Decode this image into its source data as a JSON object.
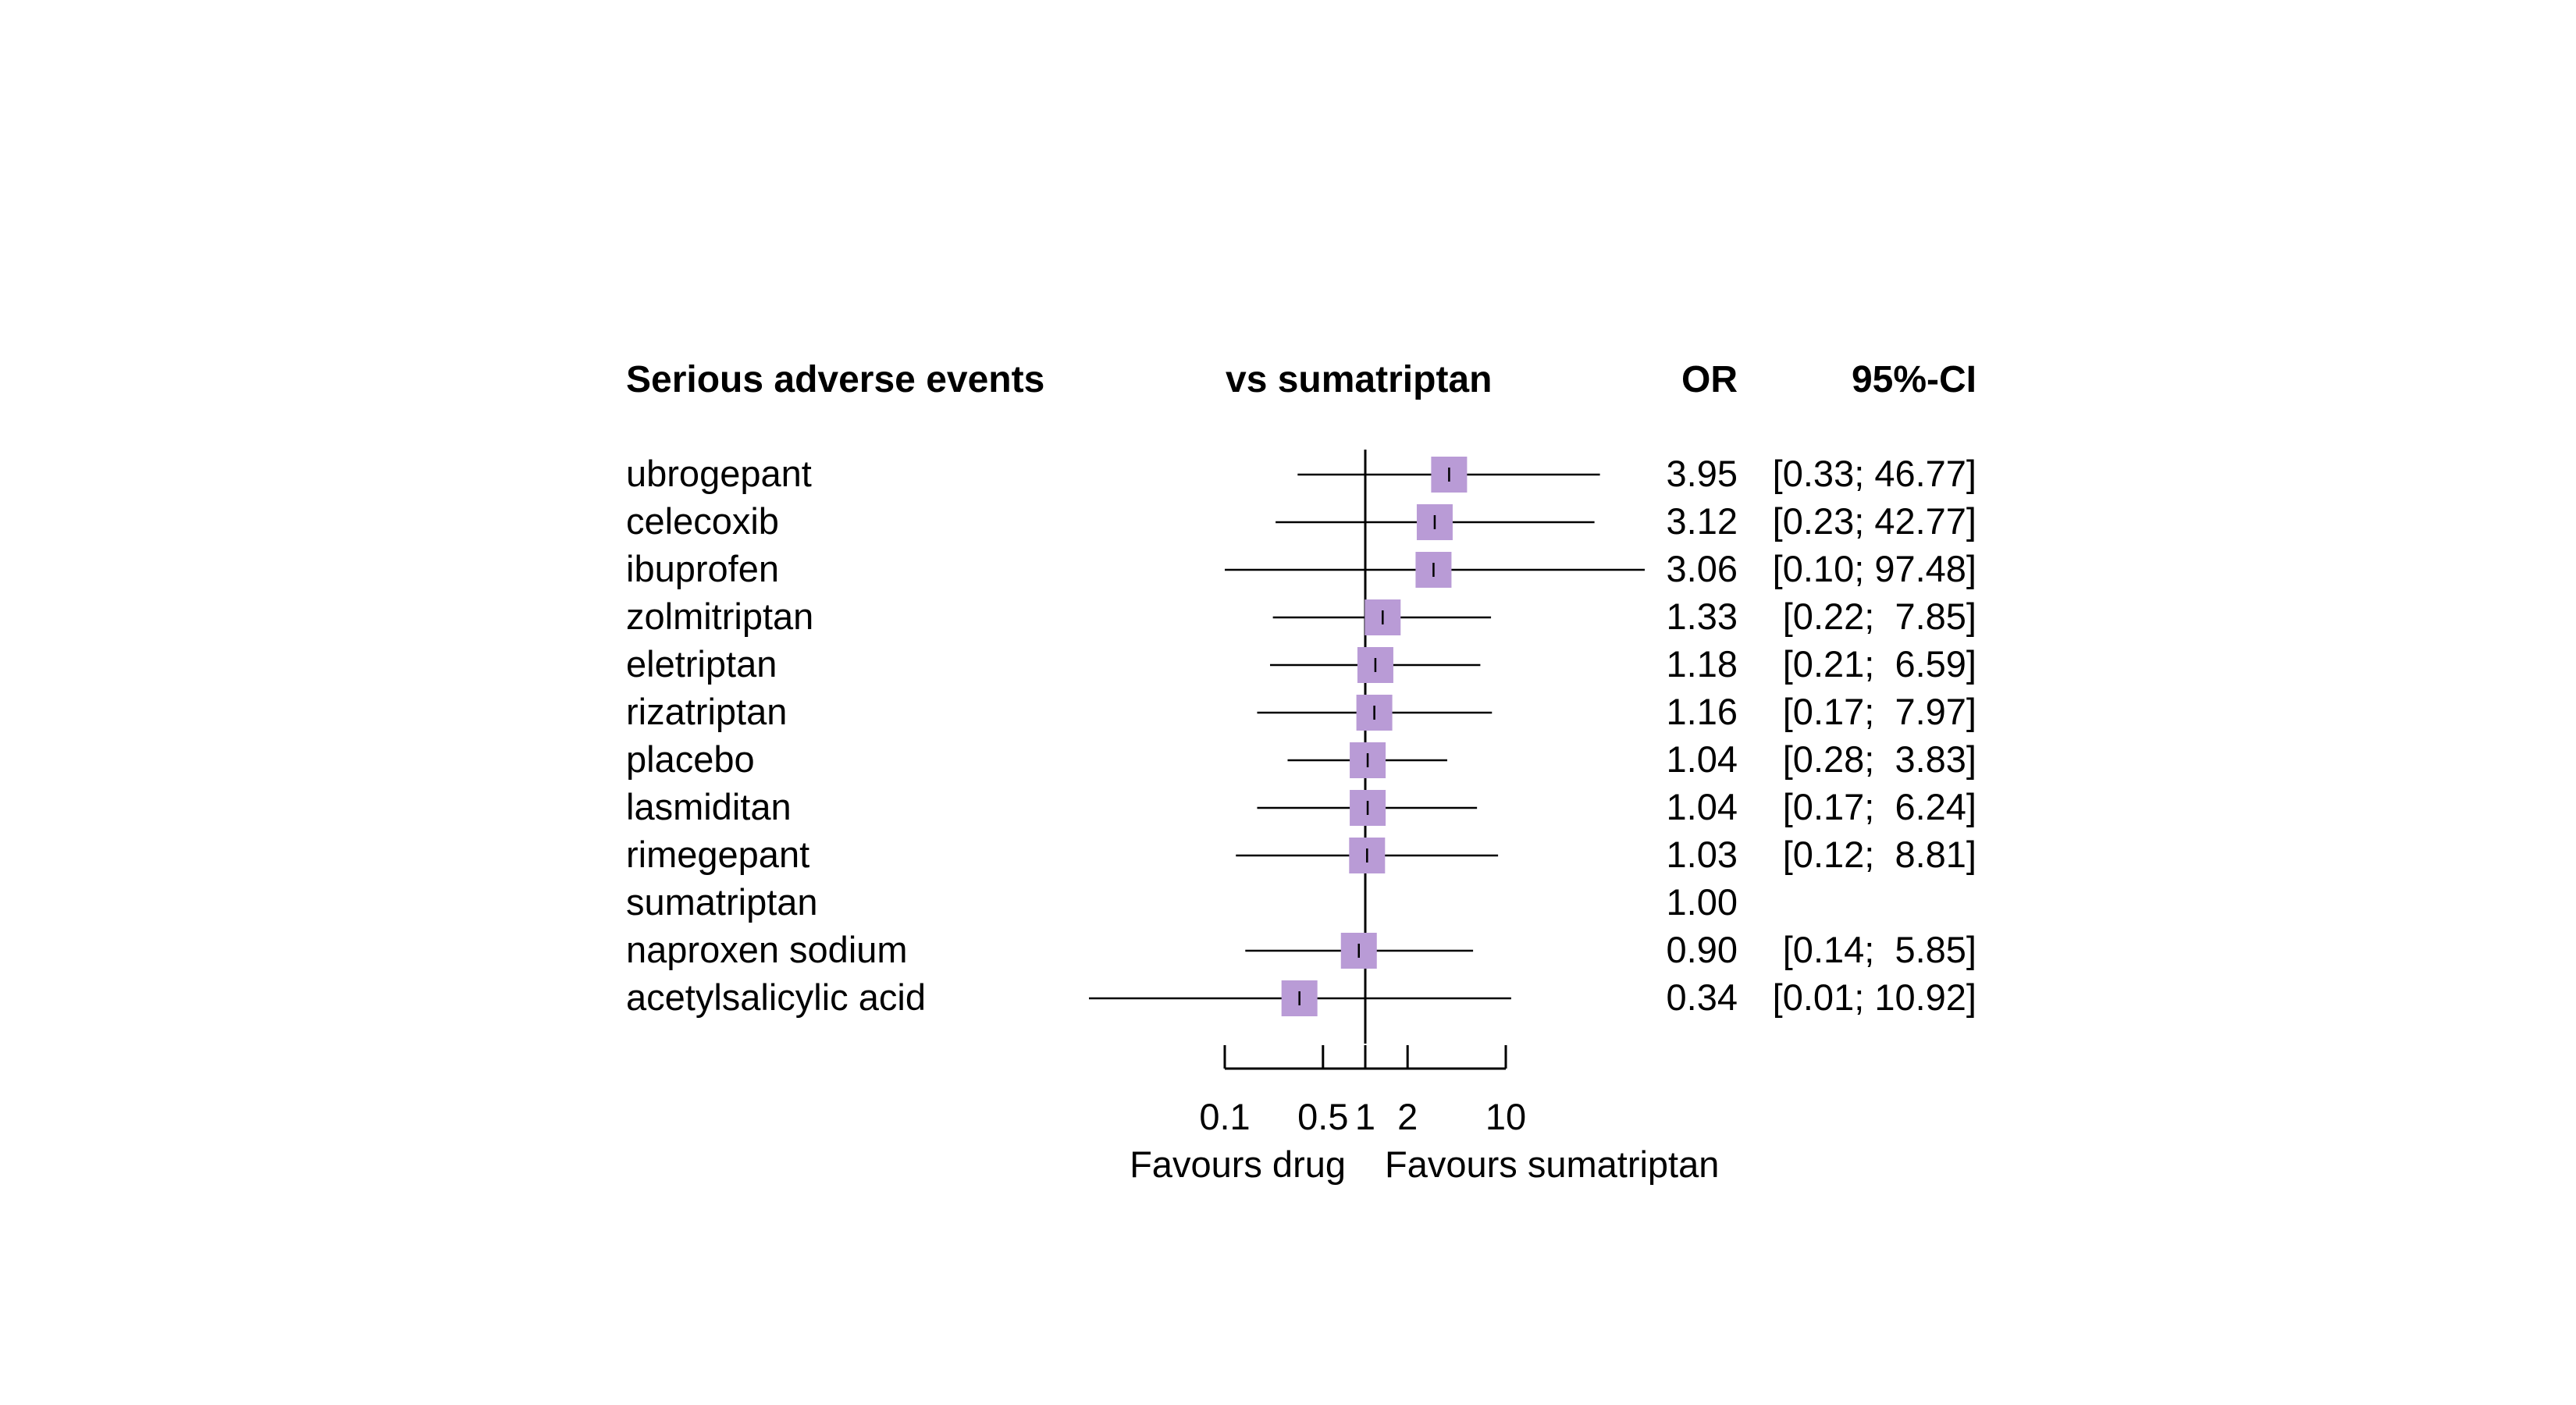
{
  "header": {
    "title": "Serious adverse events",
    "comparison": "vs sumatriptan",
    "or_col": "OR",
    "ci_col": "95%-CI"
  },
  "colors": {
    "box": "#b99bd6",
    "line": "#000000"
  },
  "chart_data": {
    "type": "forest",
    "scale": "log",
    "reference_value": 1,
    "xlim": [
      0.1,
      10
    ],
    "x_ticks": [
      0.1,
      0.5,
      1,
      2,
      10
    ],
    "x_tick_labels": [
      "0.1",
      "0.5",
      "1",
      "2",
      "10"
    ],
    "favours_left": "Favours drug",
    "favours_right": "Favours sumatriptan",
    "rows": [
      {
        "label": "ubrogepant",
        "or": 3.95,
        "lower": 0.33,
        "upper": 46.77,
        "or_text": "3.95",
        "ci_text": "[0.33; 46.77]"
      },
      {
        "label": "celecoxib",
        "or": 3.12,
        "lower": 0.23,
        "upper": 42.77,
        "or_text": "3.12",
        "ci_text": "[0.23; 42.77]"
      },
      {
        "label": "ibuprofen",
        "or": 3.06,
        "lower": 0.1,
        "upper": 97.48,
        "or_text": "3.06",
        "ci_text": "[0.10; 97.48]"
      },
      {
        "label": "zolmitriptan",
        "or": 1.33,
        "lower": 0.22,
        "upper": 7.85,
        "or_text": "1.33",
        "ci_text": "[0.22;  7.85]"
      },
      {
        "label": "eletriptan",
        "or": 1.18,
        "lower": 0.21,
        "upper": 6.59,
        "or_text": "1.18",
        "ci_text": "[0.21;  6.59]"
      },
      {
        "label": "rizatriptan",
        "or": 1.16,
        "lower": 0.17,
        "upper": 7.97,
        "or_text": "1.16",
        "ci_text": "[0.17;  7.97]"
      },
      {
        "label": "placebo",
        "or": 1.04,
        "lower": 0.28,
        "upper": 3.83,
        "or_text": "1.04",
        "ci_text": "[0.28;  3.83]"
      },
      {
        "label": "lasmiditan",
        "or": 1.04,
        "lower": 0.17,
        "upper": 6.24,
        "or_text": "1.04",
        "ci_text": "[0.17;  6.24]"
      },
      {
        "label": "rimegepant",
        "or": 1.03,
        "lower": 0.12,
        "upper": 8.81,
        "or_text": "1.03",
        "ci_text": "[0.12;  8.81]"
      },
      {
        "label": "sumatriptan",
        "or": 1.0,
        "lower": null,
        "upper": null,
        "or_text": "1.00",
        "ci_text": ""
      },
      {
        "label": "naproxen sodium",
        "or": 0.9,
        "lower": 0.14,
        "upper": 5.85,
        "or_text": "0.90",
        "ci_text": "[0.14;  5.85]"
      },
      {
        "label": "acetylsalicylic acid",
        "or": 0.34,
        "lower": 0.01,
        "upper": 10.92,
        "or_text": "0.34",
        "ci_text": "[0.01; 10.92]"
      }
    ]
  }
}
